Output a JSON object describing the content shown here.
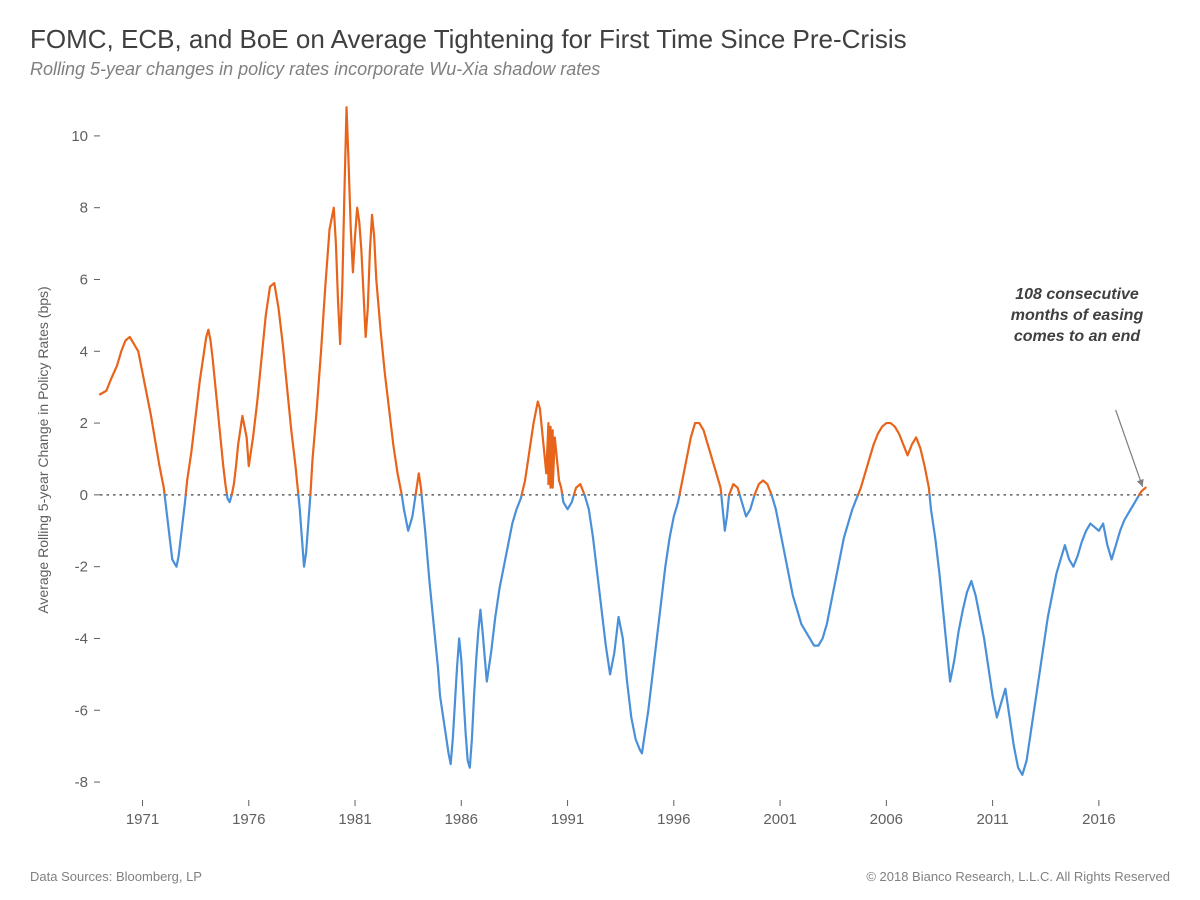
{
  "title": "FOMC, ECB, and BoE on Average Tightening for First Time Since Pre-Crisis",
  "subtitle": "Rolling 5-year changes in policy rates incorporate Wu-Xia shadow rates",
  "footer_left": "Data Sources: Bloomberg, LP",
  "footer_right": "© 2018 Bianco Research, L.L.C. All Rights Reserved",
  "annotation": {
    "line1": "108 consecutive",
    "line2": "months of easing",
    "line3": "comes to an end"
  },
  "chart": {
    "type": "line",
    "ylabel": "Average Rolling 5-year Change in Policy Rates (bps)",
    "ylim": [
      -8.5,
      11
    ],
    "yticks": [
      -8,
      -6,
      -4,
      -2,
      0,
      2,
      4,
      6,
      8,
      10
    ],
    "xlim": [
      1969,
      2018.5
    ],
    "xticks": [
      1971,
      1976,
      1981,
      1986,
      1991,
      1996,
      2001,
      2006,
      2011,
      2016
    ],
    "positive_color": "#e8641b",
    "negative_color": "#4a90d9",
    "zero_line_color": "#606060",
    "text_color": "#808080",
    "axis_text_color": "#606060",
    "line_width": 2.2,
    "background_color": "#ffffff",
    "label_fontsize": 14,
    "tick_fontsize": 15,
    "data": [
      [
        1969.0,
        2.8
      ],
      [
        1969.3,
        2.9
      ],
      [
        1969.5,
        3.2
      ],
      [
        1969.8,
        3.6
      ],
      [
        1970.0,
        4.0
      ],
      [
        1970.2,
        4.3
      ],
      [
        1970.4,
        4.4
      ],
      [
        1970.6,
        4.2
      ],
      [
        1970.8,
        4.0
      ],
      [
        1971.0,
        3.4
      ],
      [
        1971.2,
        2.8
      ],
      [
        1971.4,
        2.2
      ],
      [
        1971.6,
        1.5
      ],
      [
        1971.8,
        0.8
      ],
      [
        1972.0,
        0.2
      ],
      [
        1972.1,
        -0.3
      ],
      [
        1972.2,
        -0.8
      ],
      [
        1972.3,
        -1.3
      ],
      [
        1972.4,
        -1.8
      ],
      [
        1972.5,
        -1.9
      ],
      [
        1972.6,
        -2.0
      ],
      [
        1972.7,
        -1.7
      ],
      [
        1972.8,
        -1.2
      ],
      [
        1972.9,
        -0.7
      ],
      [
        1973.0,
        -0.2
      ],
      [
        1973.1,
        0.4
      ],
      [
        1973.3,
        1.2
      ],
      [
        1973.5,
        2.2
      ],
      [
        1973.7,
        3.2
      ],
      [
        1973.9,
        4.0
      ],
      [
        1974.0,
        4.4
      ],
      [
        1974.1,
        4.6
      ],
      [
        1974.2,
        4.3
      ],
      [
        1974.3,
        3.8
      ],
      [
        1974.4,
        3.2
      ],
      [
        1974.5,
        2.6
      ],
      [
        1974.6,
        2.0
      ],
      [
        1974.7,
        1.4
      ],
      [
        1974.8,
        0.8
      ],
      [
        1974.9,
        0.3
      ],
      [
        1975.0,
        -0.1
      ],
      [
        1975.1,
        -0.2
      ],
      [
        1975.2,
        0.0
      ],
      [
        1975.3,
        0.3
      ],
      [
        1975.4,
        0.8
      ],
      [
        1975.5,
        1.4
      ],
      [
        1975.7,
        2.2
      ],
      [
        1975.9,
        1.6
      ],
      [
        1976.0,
        0.8
      ],
      [
        1976.2,
        1.6
      ],
      [
        1976.4,
        2.6
      ],
      [
        1976.6,
        3.8
      ],
      [
        1976.8,
        5.0
      ],
      [
        1977.0,
        5.8
      ],
      [
        1977.2,
        5.9
      ],
      [
        1977.4,
        5.2
      ],
      [
        1977.6,
        4.2
      ],
      [
        1977.8,
        3.0
      ],
      [
        1978.0,
        1.8
      ],
      [
        1978.2,
        0.8
      ],
      [
        1978.3,
        0.2
      ],
      [
        1978.4,
        -0.4
      ],
      [
        1978.5,
        -1.2
      ],
      [
        1978.6,
        -2.0
      ],
      [
        1978.7,
        -1.6
      ],
      [
        1978.8,
        -0.8
      ],
      [
        1978.9,
        0.0
      ],
      [
        1979.0,
        1.0
      ],
      [
        1979.2,
        2.4
      ],
      [
        1979.4,
        4.0
      ],
      [
        1979.6,
        5.8
      ],
      [
        1979.8,
        7.4
      ],
      [
        1980.0,
        8.0
      ],
      [
        1980.1,
        7.0
      ],
      [
        1980.2,
        5.4
      ],
      [
        1980.3,
        4.2
      ],
      [
        1980.4,
        5.8
      ],
      [
        1980.5,
        8.4
      ],
      [
        1980.6,
        10.8
      ],
      [
        1980.7,
        9.2
      ],
      [
        1980.8,
        7.4
      ],
      [
        1980.9,
        6.2
      ],
      [
        1981.0,
        7.2
      ],
      [
        1981.1,
        8.0
      ],
      [
        1981.2,
        7.6
      ],
      [
        1981.3,
        6.8
      ],
      [
        1981.4,
        5.6
      ],
      [
        1981.5,
        4.4
      ],
      [
        1981.6,
        5.2
      ],
      [
        1981.7,
        6.8
      ],
      [
        1981.8,
        7.8
      ],
      [
        1981.9,
        7.2
      ],
      [
        1982.0,
        6.0
      ],
      [
        1982.2,
        4.6
      ],
      [
        1982.4,
        3.4
      ],
      [
        1982.6,
        2.4
      ],
      [
        1982.8,
        1.4
      ],
      [
        1983.0,
        0.6
      ],
      [
        1983.2,
        0.0
      ],
      [
        1983.3,
        -0.4
      ],
      [
        1983.5,
        -1.0
      ],
      [
        1983.7,
        -0.6
      ],
      [
        1983.9,
        0.2
      ],
      [
        1984.0,
        0.6
      ],
      [
        1984.1,
        0.2
      ],
      [
        1984.3,
        -1.0
      ],
      [
        1984.5,
        -2.4
      ],
      [
        1984.7,
        -3.6
      ],
      [
        1984.9,
        -4.8
      ],
      [
        1985.0,
        -5.6
      ],
      [
        1985.2,
        -6.4
      ],
      [
        1985.4,
        -7.2
      ],
      [
        1985.5,
        -7.5
      ],
      [
        1985.6,
        -6.8
      ],
      [
        1985.7,
        -5.8
      ],
      [
        1985.8,
        -4.8
      ],
      [
        1985.9,
        -4.0
      ],
      [
        1986.0,
        -4.6
      ],
      [
        1986.1,
        -5.6
      ],
      [
        1986.2,
        -6.6
      ],
      [
        1986.3,
        -7.4
      ],
      [
        1986.4,
        -7.6
      ],
      [
        1986.5,
        -6.8
      ],
      [
        1986.6,
        -5.6
      ],
      [
        1986.7,
        -4.6
      ],
      [
        1986.8,
        -3.8
      ],
      [
        1986.9,
        -3.2
      ],
      [
        1987.0,
        -3.8
      ],
      [
        1987.2,
        -5.2
      ],
      [
        1987.4,
        -4.4
      ],
      [
        1987.6,
        -3.4
      ],
      [
        1987.8,
        -2.6
      ],
      [
        1988.0,
        -2.0
      ],
      [
        1988.2,
        -1.4
      ],
      [
        1988.4,
        -0.8
      ],
      [
        1988.6,
        -0.4
      ],
      [
        1988.8,
        -0.1
      ],
      [
        1989.0,
        0.4
      ],
      [
        1989.2,
        1.2
      ],
      [
        1989.4,
        2.0
      ],
      [
        1989.6,
        2.6
      ],
      [
        1989.7,
        2.4
      ],
      [
        1989.8,
        1.8
      ],
      [
        1989.9,
        1.2
      ],
      [
        1990.0,
        0.6
      ],
      [
        1990.1,
        2.0
      ],
      [
        1990.1,
        0.3
      ],
      [
        1990.2,
        1.9
      ],
      [
        1990.2,
        0.2
      ],
      [
        1990.3,
        1.8
      ],
      [
        1990.3,
        0.2
      ],
      [
        1990.4,
        1.6
      ],
      [
        1990.5,
        1.0
      ],
      [
        1990.6,
        0.4
      ],
      [
        1990.7,
        0.2
      ],
      [
        1990.8,
        -0.2
      ],
      [
        1991.0,
        -0.4
      ],
      [
        1991.2,
        -0.2
      ],
      [
        1991.4,
        0.2
      ],
      [
        1991.6,
        0.3
      ],
      [
        1991.8,
        0.0
      ],
      [
        1992.0,
        -0.4
      ],
      [
        1992.2,
        -1.2
      ],
      [
        1992.4,
        -2.2
      ],
      [
        1992.6,
        -3.2
      ],
      [
        1992.8,
        -4.2
      ],
      [
        1993.0,
        -5.0
      ],
      [
        1993.2,
        -4.4
      ],
      [
        1993.4,
        -3.4
      ],
      [
        1993.6,
        -4.0
      ],
      [
        1993.8,
        -5.2
      ],
      [
        1994.0,
        -6.2
      ],
      [
        1994.2,
        -6.8
      ],
      [
        1994.4,
        -7.1
      ],
      [
        1994.5,
        -7.2
      ],
      [
        1994.6,
        -6.8
      ],
      [
        1994.8,
        -6.0
      ],
      [
        1995.0,
        -5.0
      ],
      [
        1995.2,
        -4.0
      ],
      [
        1995.4,
        -3.0
      ],
      [
        1995.6,
        -2.0
      ],
      [
        1995.8,
        -1.2
      ],
      [
        1996.0,
        -0.6
      ],
      [
        1996.2,
        -0.2
      ],
      [
        1996.4,
        0.4
      ],
      [
        1996.6,
        1.0
      ],
      [
        1996.8,
        1.6
      ],
      [
        1997.0,
        2.0
      ],
      [
        1997.2,
        2.0
      ],
      [
        1997.4,
        1.8
      ],
      [
        1997.6,
        1.4
      ],
      [
        1997.8,
        1.0
      ],
      [
        1998.0,
        0.6
      ],
      [
        1998.2,
        0.2
      ],
      [
        1998.3,
        -0.4
      ],
      [
        1998.4,
        -1.0
      ],
      [
        1998.5,
        -0.6
      ],
      [
        1998.6,
        0.0
      ],
      [
        1998.8,
        0.3
      ],
      [
        1999.0,
        0.2
      ],
      [
        1999.2,
        -0.2
      ],
      [
        1999.4,
        -0.6
      ],
      [
        1999.6,
        -0.4
      ],
      [
        1999.8,
        0.0
      ],
      [
        2000.0,
        0.3
      ],
      [
        2000.2,
        0.4
      ],
      [
        2000.4,
        0.3
      ],
      [
        2000.6,
        0.0
      ],
      [
        2000.8,
        -0.4
      ],
      [
        2001.0,
        -1.0
      ],
      [
        2001.2,
        -1.6
      ],
      [
        2001.4,
        -2.2
      ],
      [
        2001.6,
        -2.8
      ],
      [
        2001.8,
        -3.2
      ],
      [
        2002.0,
        -3.6
      ],
      [
        2002.2,
        -3.8
      ],
      [
        2002.4,
        -4.0
      ],
      [
        2002.6,
        -4.2
      ],
      [
        2002.8,
        -4.2
      ],
      [
        2003.0,
        -4.0
      ],
      [
        2003.2,
        -3.6
      ],
      [
        2003.4,
        -3.0
      ],
      [
        2003.6,
        -2.4
      ],
      [
        2003.8,
        -1.8
      ],
      [
        2004.0,
        -1.2
      ],
      [
        2004.2,
        -0.8
      ],
      [
        2004.4,
        -0.4
      ],
      [
        2004.6,
        -0.1
      ],
      [
        2004.8,
        0.2
      ],
      [
        2005.0,
        0.6
      ],
      [
        2005.2,
        1.0
      ],
      [
        2005.4,
        1.4
      ],
      [
        2005.6,
        1.7
      ],
      [
        2005.8,
        1.9
      ],
      [
        2006.0,
        2.0
      ],
      [
        2006.2,
        2.0
      ],
      [
        2006.4,
        1.9
      ],
      [
        2006.6,
        1.7
      ],
      [
        2006.8,
        1.4
      ],
      [
        2007.0,
        1.1
      ],
      [
        2007.2,
        1.4
      ],
      [
        2007.4,
        1.6
      ],
      [
        2007.6,
        1.3
      ],
      [
        2007.8,
        0.8
      ],
      [
        2008.0,
        0.2
      ],
      [
        2008.1,
        -0.4
      ],
      [
        2008.3,
        -1.2
      ],
      [
        2008.5,
        -2.2
      ],
      [
        2008.7,
        -3.4
      ],
      [
        2008.9,
        -4.6
      ],
      [
        2009.0,
        -5.2
      ],
      [
        2009.2,
        -4.6
      ],
      [
        2009.4,
        -3.8
      ],
      [
        2009.6,
        -3.2
      ],
      [
        2009.8,
        -2.7
      ],
      [
        2010.0,
        -2.4
      ],
      [
        2010.2,
        -2.8
      ],
      [
        2010.4,
        -3.4
      ],
      [
        2010.6,
        -4.0
      ],
      [
        2010.8,
        -4.8
      ],
      [
        2011.0,
        -5.6
      ],
      [
        2011.2,
        -6.2
      ],
      [
        2011.4,
        -5.8
      ],
      [
        2011.6,
        -5.4
      ],
      [
        2011.8,
        -6.2
      ],
      [
        2012.0,
        -7.0
      ],
      [
        2012.2,
        -7.6
      ],
      [
        2012.4,
        -7.8
      ],
      [
        2012.6,
        -7.4
      ],
      [
        2012.8,
        -6.6
      ],
      [
        2013.0,
        -5.8
      ],
      [
        2013.2,
        -5.0
      ],
      [
        2013.4,
        -4.2
      ],
      [
        2013.6,
        -3.4
      ],
      [
        2013.8,
        -2.8
      ],
      [
        2014.0,
        -2.2
      ],
      [
        2014.2,
        -1.8
      ],
      [
        2014.4,
        -1.4
      ],
      [
        2014.6,
        -1.8
      ],
      [
        2014.8,
        -2.0
      ],
      [
        2015.0,
        -1.7
      ],
      [
        2015.2,
        -1.3
      ],
      [
        2015.4,
        -1.0
      ],
      [
        2015.6,
        -0.8
      ],
      [
        2015.8,
        -0.9
      ],
      [
        2016.0,
        -1.0
      ],
      [
        2016.2,
        -0.8
      ],
      [
        2016.4,
        -1.4
      ],
      [
        2016.6,
        -1.8
      ],
      [
        2016.8,
        -1.4
      ],
      [
        2017.0,
        -1.0
      ],
      [
        2017.2,
        -0.7
      ],
      [
        2017.4,
        -0.5
      ],
      [
        2017.6,
        -0.3
      ],
      [
        2017.8,
        -0.1
      ],
      [
        2018.0,
        0.1
      ],
      [
        2018.2,
        0.2
      ]
    ]
  }
}
